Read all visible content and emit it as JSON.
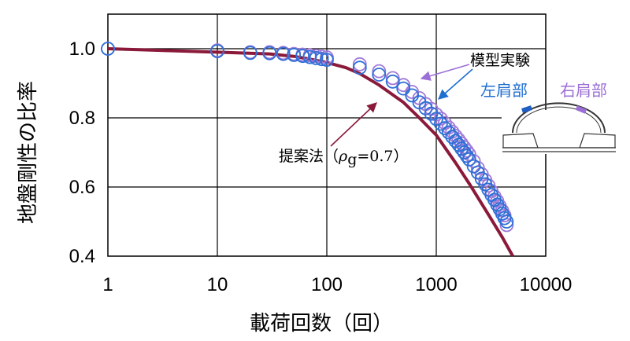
{
  "chart_data": {
    "type": "scatter",
    "xlabel": "載荷回数（回）",
    "ylabel": "地盤剛性の比率",
    "xscale": "log",
    "xlim": [
      1,
      10000
    ],
    "ylim": [
      0.4,
      1.1
    ],
    "x_ticks": [
      "1",
      "10",
      "100",
      "1000",
      "10000"
    ],
    "y_ticks": [
      "0.4",
      "0.6",
      "0.8",
      "1.0"
    ],
    "grid": true,
    "colors": {
      "proposed": "#8b1a3a",
      "left": "#2f6fd6",
      "right": "#a07ad8",
      "axis": "#000000"
    },
    "series": [
      {
        "name": "右肩部",
        "kind": "marker",
        "x": [
          1,
          10,
          20,
          30,
          40,
          50,
          60,
          70,
          80,
          90,
          100,
          200,
          300,
          400,
          500,
          600,
          700,
          800,
          900,
          1000,
          1100,
          1200,
          1300,
          1400,
          1500,
          1600,
          1700,
          1800,
          1900,
          2000,
          2200,
          2400,
          2600,
          2800,
          3000,
          3200,
          3400,
          3600,
          3800,
          4000,
          4200,
          4400
        ],
        "y": [
          1.0,
          0.995,
          0.99,
          0.99,
          0.988,
          0.985,
          0.983,
          0.981,
          0.979,
          0.977,
          0.975,
          0.955,
          0.935,
          0.915,
          0.895,
          0.875,
          0.857,
          0.84,
          0.826,
          0.81,
          0.798,
          0.785,
          0.772,
          0.76,
          0.748,
          0.737,
          0.726,
          0.715,
          0.705,
          0.695,
          0.675,
          0.655,
          0.637,
          0.62,
          0.604,
          0.588,
          0.573,
          0.56,
          0.545,
          0.532,
          0.518,
          0.49
        ]
      },
      {
        "name": "左肩部",
        "kind": "marker",
        "x": [
          1,
          10,
          20,
          30,
          40,
          50,
          60,
          70,
          80,
          90,
          100,
          200,
          300,
          400,
          500,
          600,
          700,
          800,
          900,
          1000,
          1100,
          1200,
          1300,
          1400,
          1500,
          1600,
          1700,
          1800,
          1900,
          2000,
          2200,
          2400,
          2600,
          2800,
          3000,
          3200,
          3400,
          3600,
          3800,
          4000,
          4200,
          4400
        ],
        "y": [
          1.0,
          0.993,
          0.988,
          0.987,
          0.985,
          0.982,
          0.979,
          0.976,
          0.973,
          0.97,
          0.968,
          0.945,
          0.925,
          0.905,
          0.885,
          0.865,
          0.845,
          0.828,
          0.812,
          0.797,
          0.783,
          0.77,
          0.758,
          0.745,
          0.733,
          0.722,
          0.711,
          0.7,
          0.69,
          0.68,
          0.66,
          0.642,
          0.624,
          0.608,
          0.592,
          0.577,
          0.563,
          0.549,
          0.536,
          0.523,
          0.51,
          0.5
        ]
      },
      {
        "name": "提案法",
        "kind": "line",
        "x": [
          1,
          10,
          30,
          50,
          70,
          100,
          150,
          200,
          300,
          500,
          700,
          1000,
          1500,
          2000,
          3000,
          4000,
          5000
        ],
        "y": [
          1.0,
          0.99,
          0.985,
          0.978,
          0.97,
          0.96,
          0.945,
          0.928,
          0.895,
          0.845,
          0.8,
          0.75,
          0.67,
          0.61,
          0.52,
          0.455,
          0.4
        ]
      }
    ],
    "annotations": {
      "model_test": "模型実験",
      "left_shoulder": "左肩部",
      "right_shoulder": "右肩部",
      "proposed_prefix": "提案法（",
      "rho": "ρ",
      "rho_sub": "g",
      "rho_value": "=0.7）"
    }
  }
}
